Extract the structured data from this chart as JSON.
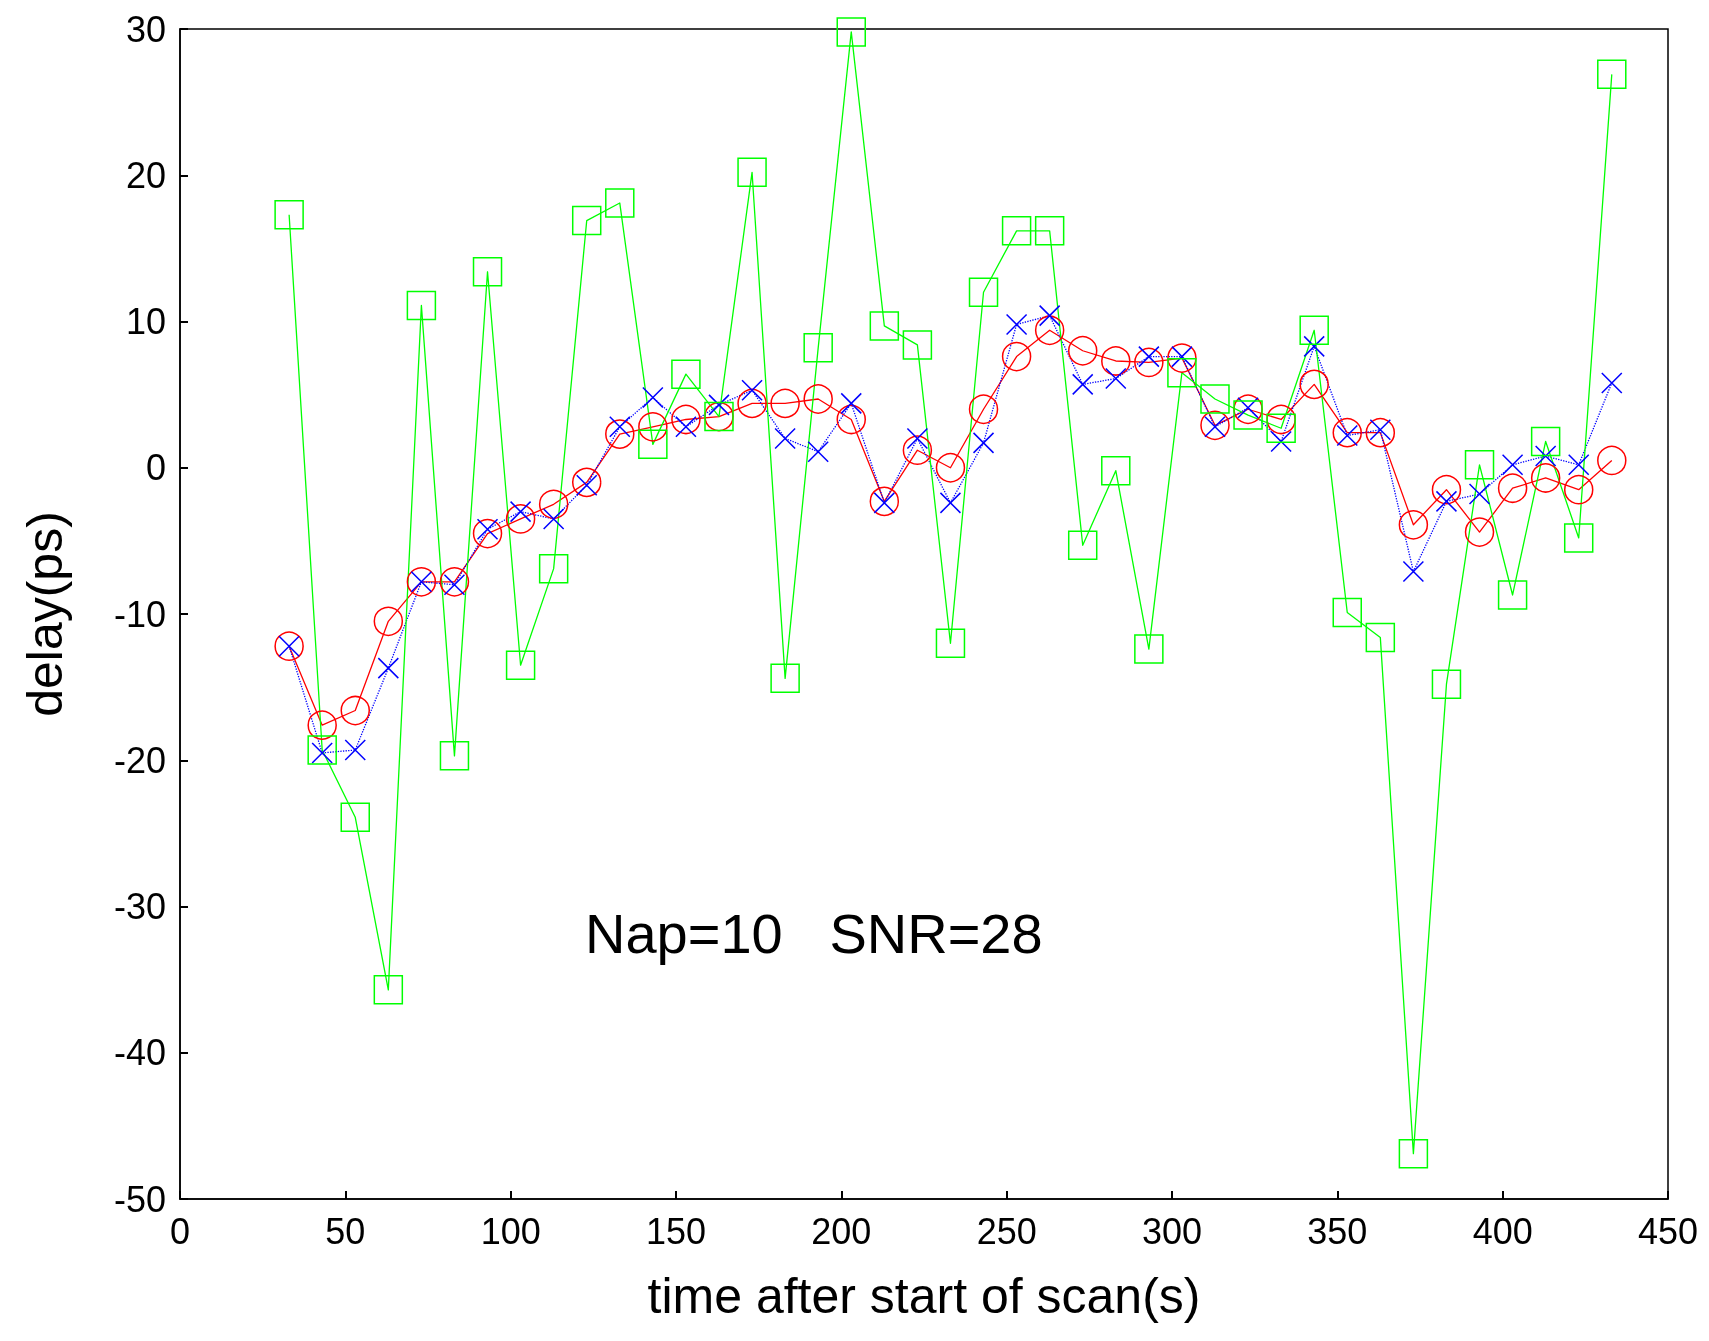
{
  "chart_data": {
    "type": "line",
    "xlabel": "time after start of scan(s)",
    "ylabel": "delay(ps)",
    "x": [
      33,
      43,
      53,
      63,
      73,
      83,
      93,
      103,
      113,
      123,
      133,
      143,
      153,
      163,
      173,
      183,
      193,
      203,
      213,
      223,
      233,
      243,
      253,
      263,
      273,
      283,
      293,
      303,
      313,
      323,
      333,
      343,
      353,
      363,
      373,
      383,
      393,
      403,
      413,
      423,
      433
    ],
    "series": [
      {
        "color": "#ff0000",
        "marker": "circle",
        "line_style": "solid",
        "values": [
          -12.2,
          -17.6,
          -16.6,
          -10.5,
          -7.8,
          -7.8,
          -4.5,
          -3.5,
          -2.5,
          -1.0,
          2.3,
          2.8,
          3.3,
          3.5,
          4.4,
          4.4,
          4.7,
          3.3,
          -2.3,
          1.2,
          0.0,
          4.0,
          7.6,
          9.4,
          8.0,
          7.3,
          7.2,
          7.5,
          2.9,
          4.0,
          3.3,
          5.7,
          2.4,
          2.4,
          -3.9,
          -1.5,
          -4.4,
          -1.4,
          -0.7,
          -1.5,
          0.5
        ]
      },
      {
        "color": "#0000ff",
        "marker": "cross",
        "line_style": "dotted",
        "values": [
          -12.2,
          -19.5,
          -19.3,
          -13.7,
          -7.8,
          -8.0,
          -4.2,
          -3.0,
          -3.5,
          -1.2,
          2.8,
          4.8,
          2.8,
          4.3,
          5.3,
          2.0,
          1.1,
          4.4,
          -2.4,
          2.0,
          -2.4,
          1.7,
          9.8,
          10.4,
          5.7,
          6.1,
          7.6,
          7.6,
          2.8,
          4.1,
          1.8,
          8.3,
          2.2,
          2.6,
          -7.1,
          -2.3,
          -1.8,
          0.2,
          0.8,
          0.2,
          5.8
        ]
      },
      {
        "color": "#00ff00",
        "marker": "square",
        "line_style": "solid",
        "values": [
          17.3,
          -19.3,
          -23.9,
          -35.7,
          11.1,
          -19.7,
          13.4,
          -13.5,
          -6.9,
          16.9,
          18.1,
          1.6,
          6.4,
          3.5,
          20.2,
          -14.4,
          8.2,
          29.8,
          9.7,
          8.4,
          -12.0,
          12.0,
          16.2,
          16.2,
          -5.3,
          -0.2,
          -12.4,
          6.5,
          4.7,
          3.6,
          2.7,
          9.4,
          -9.9,
          -11.6,
          -46.9,
          -14.8,
          0.2,
          -8.7,
          1.8,
          -4.8,
          26.9
        ]
      }
    ],
    "xlim": [
      0,
      450
    ],
    "xticks": [
      0,
      50,
      100,
      150,
      200,
      250,
      300,
      350,
      400,
      450
    ],
    "ylim": [
      -50,
      30
    ],
    "yticks": [
      -50,
      -40,
      -30,
      -20,
      -10,
      0,
      10,
      20,
      30
    ],
    "grid": false,
    "annotations": [
      "Nap=10   SNR=28"
    ]
  }
}
